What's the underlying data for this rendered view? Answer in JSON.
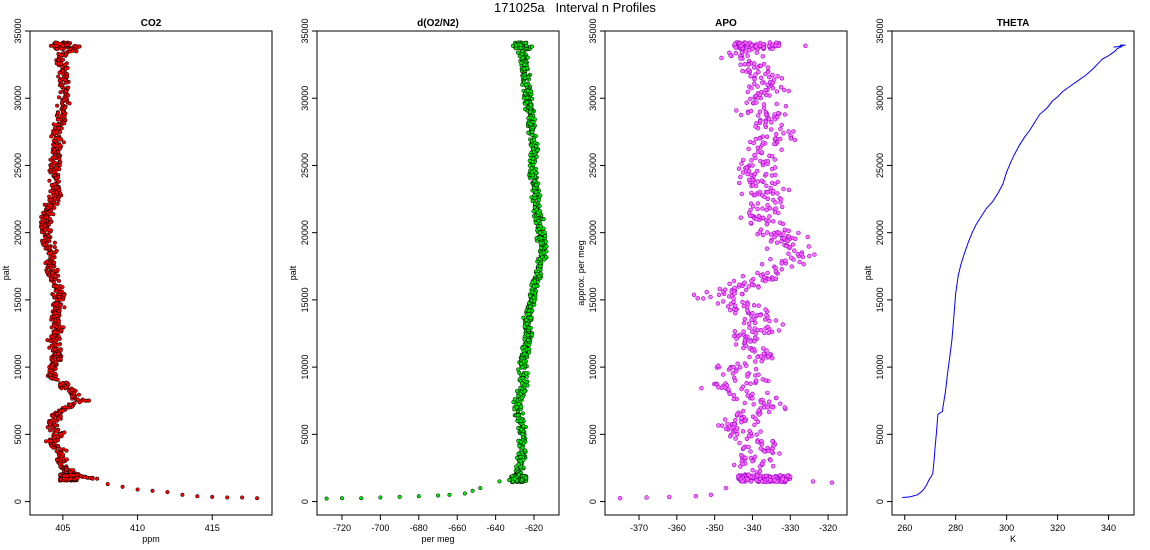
{
  "page": {
    "title": "171025a   Interval n Profiles"
  },
  "chart_data": [
    {
      "type": "scatter",
      "title": "CO2",
      "xlabel": "ppm",
      "ylabel": "palt",
      "xlim": [
        402.8,
        419.0
      ],
      "ylim": [
        -1000,
        35000
      ],
      "xticks": [
        405,
        410,
        415
      ],
      "yticks": [
        0,
        5000,
        10000,
        15000,
        20000,
        25000,
        30000,
        35000
      ],
      "color": "#ff0000",
      "edge_color": "#000000",
      "marker": "point",
      "style": "co2",
      "points": [
        [
          404.2,
          33900
        ],
        [
          404.6,
          33900
        ],
        [
          405.0,
          33900
        ],
        [
          405.3,
          33950
        ],
        [
          405.8,
          33900
        ],
        [
          406.1,
          33850
        ],
        [
          404.9,
          33200
        ],
        [
          405.0,
          32000
        ],
        [
          405.2,
          30500
        ],
        [
          405.0,
          29000
        ],
        [
          404.6,
          27500
        ],
        [
          404.7,
          26000
        ],
        [
          404.4,
          24500
        ],
        [
          404.6,
          23000
        ],
        [
          404.0,
          21500
        ],
        [
          403.8,
          20500
        ],
        [
          404.0,
          19500
        ],
        [
          404.2,
          18500
        ],
        [
          404.3,
          17000
        ],
        [
          404.6,
          16000
        ],
        [
          404.8,
          15000
        ],
        [
          404.5,
          14000
        ],
        [
          404.6,
          13000
        ],
        [
          404.4,
          12000
        ],
        [
          404.7,
          11000
        ],
        [
          404.3,
          10000
        ],
        [
          404.2,
          9200
        ],
        [
          405.0,
          8800
        ],
        [
          405.2,
          8500
        ],
        [
          405.6,
          8300
        ],
        [
          406.0,
          7600
        ],
        [
          406.5,
          7500
        ],
        [
          405.5,
          7200
        ],
        [
          404.6,
          6500
        ],
        [
          404.3,
          5500
        ],
        [
          404.8,
          5000
        ],
        [
          404.2,
          4500
        ],
        [
          405.0,
          3500
        ],
        [
          404.8,
          2800
        ],
        [
          405.5,
          2200
        ],
        [
          406.2,
          1900
        ],
        [
          407.0,
          1700
        ],
        [
          408.0,
          1300
        ],
        [
          409.0,
          1100
        ],
        [
          410.0,
          900
        ],
        [
          411.0,
          800
        ],
        [
          412.0,
          700
        ],
        [
          413.0,
          500
        ],
        [
          414.0,
          400
        ],
        [
          415.0,
          350
        ],
        [
          416.0,
          300
        ],
        [
          417.0,
          300
        ],
        [
          418.0,
          250
        ]
      ]
    },
    {
      "type": "scatter",
      "title": "d(O2/N2)",
      "xlabel": "per meg",
      "ylabel": "palt",
      "xlim": [
        -733,
        -607
      ],
      "ylim": [
        -1000,
        35000
      ],
      "xticks": [
        -720,
        -700,
        -680,
        -660,
        -640,
        -620
      ],
      "yticks": [
        0,
        5000,
        10000,
        15000,
        20000,
        25000,
        30000,
        35000
      ],
      "color": "#00ee00",
      "edge_color": "#000000",
      "marker": "point",
      "style": "o2",
      "points": [
        [
          -631,
          33900
        ],
        [
          -627,
          33950
        ],
        [
          -624,
          33900
        ],
        [
          -621,
          33850
        ],
        [
          -626,
          33500
        ],
        [
          -625,
          32500
        ],
        [
          -624,
          31000
        ],
        [
          -622,
          29000
        ],
        [
          -621,
          27500
        ],
        [
          -620,
          26000
        ],
        [
          -621,
          24500
        ],
        [
          -619,
          23000
        ],
        [
          -618,
          21500
        ],
        [
          -617,
          20000
        ],
        [
          -615,
          18500
        ],
        [
          -617,
          17500
        ],
        [
          -620,
          16000
        ],
        [
          -622,
          14500
        ],
        [
          -624,
          13500
        ],
        [
          -623,
          12000
        ],
        [
          -625,
          11000
        ],
        [
          -626,
          10000
        ],
        [
          -625,
          9000
        ],
        [
          -627,
          8000
        ],
        [
          -629,
          7000
        ],
        [
          -627,
          6000
        ],
        [
          -626,
          5000
        ],
        [
          -626,
          4000
        ],
        [
          -627,
          3000
        ],
        [
          -628,
          2000
        ],
        [
          -630,
          1700
        ],
        [
          -633,
          1600
        ],
        [
          -638,
          1500
        ],
        [
          -648,
          1000
        ],
        [
          -652,
          800
        ],
        [
          -656,
          600
        ],
        [
          -664,
          500
        ],
        [
          -670,
          450
        ],
        [
          -680,
          400
        ],
        [
          -690,
          350
        ],
        [
          -700,
          300
        ],
        [
          -710,
          250
        ],
        [
          -720,
          250
        ],
        [
          -728,
          220
        ]
      ]
    },
    {
      "type": "scatter",
      "title": "APO",
      "xlabel": "",
      "ylabel": "approx. per meg",
      "xlim": [
        -379,
        -315
      ],
      "ylim": [
        -1000,
        35000
      ],
      "xticks": [
        -370,
        -360,
        -350,
        -340,
        -330,
        -320
      ],
      "yticks": [
        0,
        5000,
        10000,
        15000,
        20000,
        25000,
        30000,
        35000
      ],
      "color": "#ff66ff",
      "edge_color": "#9900cc",
      "marker": "circle",
      "style": "apo",
      "points": [
        [
          -343,
          33900
        ],
        [
          -338,
          33900
        ],
        [
          -333,
          33900
        ],
        [
          -326,
          33900
        ],
        [
          -341,
          32500
        ],
        [
          -336,
          31000
        ],
        [
          -338,
          29000
        ],
        [
          -334,
          27000
        ],
        [
          -340,
          25000
        ],
        [
          -336,
          23000
        ],
        [
          -339,
          21000
        ],
        [
          -333,
          20000
        ],
        [
          -331,
          19000
        ],
        [
          -327,
          18400
        ],
        [
          -336,
          17000
        ],
        [
          -341,
          16000
        ],
        [
          -345,
          15100
        ],
        [
          -353,
          15100
        ],
        [
          -340,
          14000
        ],
        [
          -336,
          13000
        ],
        [
          -342,
          12000
        ],
        [
          -337,
          11000
        ],
        [
          -345,
          10000
        ],
        [
          -339,
          9000
        ],
        [
          -349,
          8500
        ],
        [
          -340,
          8000
        ],
        [
          -336,
          7000
        ],
        [
          -342,
          6000
        ],
        [
          -344,
          5000
        ],
        [
          -336,
          4000
        ],
        [
          -340,
          3000
        ],
        [
          -341,
          2000
        ],
        [
          -332,
          1700
        ],
        [
          -324,
          1500
        ],
        [
          -319,
          1400
        ],
        [
          -347,
          1000
        ],
        [
          -351,
          500
        ],
        [
          -355,
          400
        ],
        [
          -362,
          350
        ],
        [
          -368,
          300
        ],
        [
          -375,
          250
        ]
      ]
    },
    {
      "type": "line",
      "title": "THETA",
      "xlabel": "K",
      "ylabel": "palt",
      "xlim": [
        255,
        350
      ],
      "ylim": [
        -1000,
        35000
      ],
      "xticks": [
        260,
        280,
        300,
        320,
        340
      ],
      "yticks": [
        0,
        5000,
        10000,
        15000,
        20000,
        25000,
        30000,
        35000
      ],
      "color": "#0000ff",
      "style": "theta",
      "points": [
        [
          259,
          300
        ],
        [
          262,
          350
        ],
        [
          265,
          500
        ],
        [
          267,
          800
        ],
        [
          268.5,
          1200
        ],
        [
          269.5,
          1600
        ],
        [
          270.5,
          1900
        ],
        [
          271,
          2100
        ],
        [
          271.5,
          3000
        ],
        [
          272,
          4200
        ],
        [
          272.4,
          5000
        ],
        [
          273,
          6500
        ],
        [
          274.8,
          6700
        ],
        [
          275,
          7000
        ],
        [
          276,
          8200
        ],
        [
          276.8,
          9500
        ],
        [
          277.5,
          10500
        ],
        [
          278.5,
          12000
        ],
        [
          279.3,
          13800
        ],
        [
          280,
          15500
        ],
        [
          281,
          16800
        ],
        [
          282,
          17600
        ],
        [
          283.5,
          18500
        ],
        [
          285,
          19300
        ],
        [
          286.5,
          20000
        ],
        [
          288,
          20600
        ],
        [
          290,
          21200
        ],
        [
          292,
          21800
        ],
        [
          294.5,
          22300
        ],
        [
          296.5,
          22900
        ],
        [
          298.5,
          23600
        ],
        [
          300,
          24500
        ],
        [
          301.5,
          25200
        ],
        [
          303,
          25800
        ],
        [
          305,
          26500
        ],
        [
          307,
          27100
        ],
        [
          309,
          27600
        ],
        [
          311,
          28200
        ],
        [
          313,
          28800
        ],
        [
          316,
          29300
        ],
        [
          318,
          29800
        ],
        [
          320,
          30100
        ],
        [
          322,
          30500
        ],
        [
          325,
          30900
        ],
        [
          328,
          31300
        ],
        [
          331,
          31700
        ],
        [
          334,
          32200
        ],
        [
          336,
          32600
        ],
        [
          337.5,
          32900
        ],
        [
          339.5,
          33100
        ],
        [
          341,
          33300
        ],
        [
          342.5,
          33500
        ],
        [
          343.5,
          33700
        ],
        [
          344.8,
          33800
        ],
        [
          345.5,
          33900
        ],
        [
          346,
          33950
        ],
        [
          344,
          33850
        ],
        [
          342,
          33800
        ]
      ]
    }
  ]
}
